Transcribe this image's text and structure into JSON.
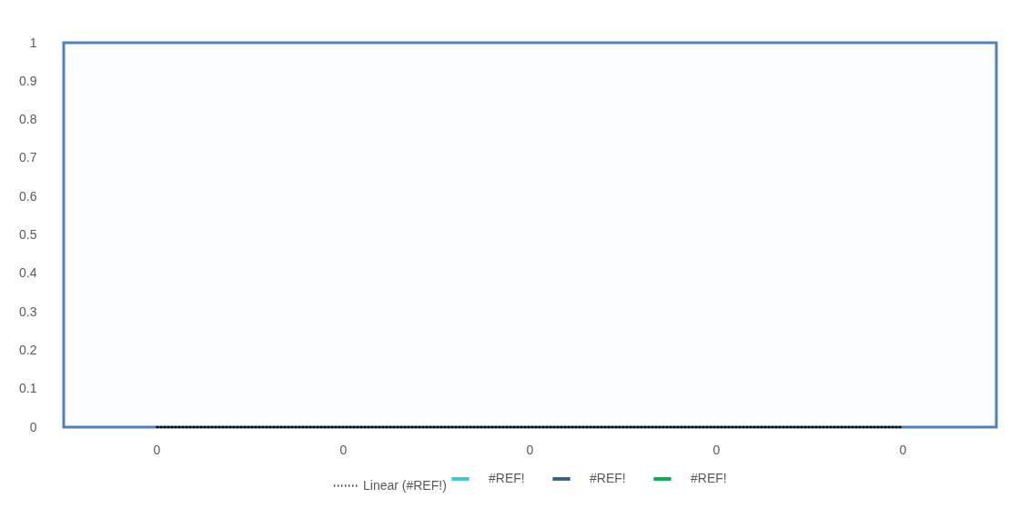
{
  "chart_data": {
    "type": "bar",
    "categories": [
      "0",
      "0",
      "0",
      "0",
      "0"
    ],
    "series": [
      {
        "name": "#REF!",
        "color": "#33cccc",
        "values": [
          0,
          0,
          0,
          0,
          0
        ]
      },
      {
        "name": "#REF!",
        "color": "#355e91",
        "values": [
          0,
          0,
          0,
          0,
          0
        ]
      },
      {
        "name": "#REF!",
        "color": "#00b050",
        "values": [
          0,
          0,
          0,
          0,
          0
        ]
      },
      {
        "name": "Linear (#REF!)",
        "type": "line",
        "color": "#000000",
        "line_style": "dotted",
        "values": [
          0,
          0,
          0,
          0,
          0
        ]
      }
    ],
    "ylim": [
      0,
      1
    ],
    "yticks": [
      0,
      0.1,
      0.2,
      0.3,
      0.4,
      0.5,
      0.6,
      0.7,
      0.8,
      0.9,
      1
    ],
    "grid": false,
    "legend": "bottom"
  }
}
